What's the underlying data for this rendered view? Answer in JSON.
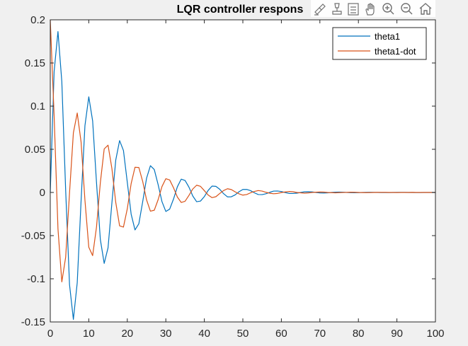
{
  "toolbar": {
    "icons": [
      "brush-icon",
      "data-cursor-icon",
      "legend-toggle-icon",
      "pan-hand-icon",
      "zoom-in-icon",
      "zoom-out-icon",
      "home-icon"
    ]
  },
  "colors": {
    "theta1": "#0072bd",
    "theta1_dot": "#d95319",
    "axes_background": "#ffffff",
    "figure_background": "#f0f0f0"
  },
  "chart_data": {
    "type": "line",
    "title": "LQR controller respons",
    "xlabel": "",
    "ylabel": "",
    "xlim": [
      0,
      100
    ],
    "ylim": [
      -0.15,
      0.2
    ],
    "xticks": [
      0,
      10,
      20,
      30,
      40,
      50,
      60,
      70,
      80,
      90,
      100
    ],
    "xtick_labels": [
      "0",
      "10",
      "20",
      "30",
      "40",
      "50",
      "60",
      "70",
      "80",
      "90",
      "100"
    ],
    "yticks": [
      -0.15,
      -0.1,
      -0.05,
      0,
      0.05,
      0.1,
      0.15,
      0.2
    ],
    "ytick_labels": [
      "-0.15",
      "-0.1",
      "-0.05",
      "0",
      "0.05",
      "0.1",
      "0.15",
      "0.2"
    ],
    "grid": false,
    "legend": {
      "placement": "top-right",
      "entries": [
        "theta1",
        "theta1-dot"
      ]
    },
    "series": [
      {
        "name": "theta1",
        "x": [
          0,
          1,
          2,
          3,
          4,
          5,
          6,
          7,
          8,
          9,
          10,
          11,
          12,
          13,
          14,
          15,
          16,
          17,
          18,
          19,
          20,
          21,
          22,
          23,
          24,
          25,
          26,
          27,
          28,
          29,
          30,
          31,
          32,
          33,
          34,
          35,
          36,
          37,
          38,
          39,
          40,
          41,
          42,
          43,
          44,
          45,
          46,
          47,
          48,
          49,
          50,
          51,
          52,
          53,
          54,
          55,
          56,
          57,
          58,
          59,
          60,
          61,
          62,
          63,
          64,
          65,
          66,
          67,
          68,
          69,
          70,
          71,
          72,
          73,
          74,
          75,
          76,
          77,
          78,
          79,
          80,
          81,
          82,
          83,
          84,
          85,
          86,
          87,
          88,
          89,
          90,
          91,
          92,
          93,
          94,
          95,
          96,
          97,
          98,
          99,
          100
        ],
        "y": [
          0.0,
          0.1401,
          0.1864,
          0.1283,
          0.0021,
          -0.1068,
          -0.1471,
          -0.1046,
          -0.0097,
          0.0773,
          0.1108,
          0.0829,
          0.0118,
          -0.0545,
          -0.0822,
          -0.0641,
          -0.0122,
          0.0375,
          0.0601,
          0.0486,
          0.0117,
          -0.0252,
          -0.0434,
          -0.0362,
          -0.0106,
          0.0165,
          0.031,
          0.0266,
          0.0091,
          -0.0106,
          -0.022,
          -0.0193,
          -0.0076,
          0.0066,
          0.0154,
          0.0139,
          0.0062,
          -0.0041,
          -0.0107,
          -0.01,
          -0.0048,
          0.0024,
          0.0074,
          0.0071,
          0.0037,
          -0.0014,
          -0.0051,
          -0.005,
          -0.0028,
          0.0008,
          0.0035,
          0.0035,
          0.0021,
          -0.0004,
          -0.0024,
          -0.0025,
          -0.0015,
          0.0002,
          0.0016,
          0.0017,
          0.0011,
          -0.0001,
          -0.0011,
          -0.0012,
          -0.0008,
          0.0,
          0.0007,
          0.0008,
          0.0006,
          0.0,
          -0.0005,
          -0.0006,
          -0.0004,
          0.0,
          0.0003,
          0.0004,
          0.0003,
          0.0,
          -0.0002,
          -0.0003,
          -0.0002,
          0.0,
          0.0001,
          0.0002,
          0.0001,
          0.0,
          -0.0001,
          -0.0001,
          -0.0001,
          0.0,
          0.0001,
          0.0001,
          0.0001,
          0.0,
          -0.0,
          -0.0001,
          -0.0001,
          0.0,
          0.0,
          0.0,
          0.0
        ]
      },
      {
        "name": "theta1-dot",
        "x": [
          0,
          1,
          2,
          3,
          4,
          5,
          6,
          7,
          8,
          9,
          10,
          11,
          12,
          13,
          14,
          15,
          16,
          17,
          18,
          19,
          20,
          21,
          22,
          23,
          24,
          25,
          26,
          27,
          28,
          29,
          30,
          31,
          32,
          33,
          34,
          35,
          36,
          37,
          38,
          39,
          40,
          41,
          42,
          43,
          44,
          45,
          46,
          47,
          48,
          49,
          50,
          51,
          52,
          53,
          54,
          55,
          56,
          57,
          58,
          59,
          60,
          61,
          62,
          63,
          64,
          65,
          66,
          67,
          68,
          69,
          70,
          71,
          72,
          73,
          74,
          75,
          76,
          77,
          78,
          79,
          80,
          81,
          82,
          83,
          84,
          85,
          86,
          87,
          88,
          89,
          90,
          91,
          92,
          93,
          94,
          95,
          96,
          97,
          98,
          99,
          100
        ],
        "y": [
          0.2,
          0.0888,
          -0.0422,
          -0.1036,
          -0.0749,
          -0.0005,
          0.0691,
          0.092,
          0.0584,
          -0.0089,
          -0.0634,
          -0.0732,
          -0.0402,
          0.0113,
          0.0504,
          0.0548,
          0.0278,
          -0.0115,
          -0.0387,
          -0.0401,
          -0.0189,
          0.0103,
          0.0292,
          0.0289,
          0.0127,
          -0.0086,
          -0.0217,
          -0.0206,
          -0.0084,
          0.0068,
          0.0159,
          0.0145,
          0.0054,
          -0.0053,
          -0.0116,
          -0.0102,
          -0.0034,
          0.004,
          0.0084,
          0.0071,
          0.0021,
          -0.003,
          -0.006,
          -0.0049,
          -0.0012,
          0.0022,
          0.0043,
          0.0034,
          0.0007,
          -0.0016,
          -0.0031,
          -0.0024,
          -0.0004,
          0.0012,
          0.0022,
          0.0016,
          0.0002,
          -0.0009,
          -0.0015,
          -0.0011,
          -0.0001,
          0.0006,
          0.0011,
          0.0008,
          0.0,
          -0.0004,
          -0.0008,
          -0.0005,
          0.0,
          0.0003,
          0.0005,
          0.0004,
          0.0,
          -0.0002,
          -0.0004,
          -0.0002,
          -0.0,
          0.0001,
          0.0003,
          0.0002,
          0.0,
          -0.0001,
          -0.0002,
          -0.0001,
          -0.0,
          0.0001,
          0.0001,
          0.0001,
          0.0,
          -0.0,
          -0.0001,
          -0.0,
          -0.0,
          0.0,
          0.0001,
          0.0,
          0.0,
          -0.0,
          -0.0,
          -0.0,
          -0.0
        ]
      }
    ]
  }
}
